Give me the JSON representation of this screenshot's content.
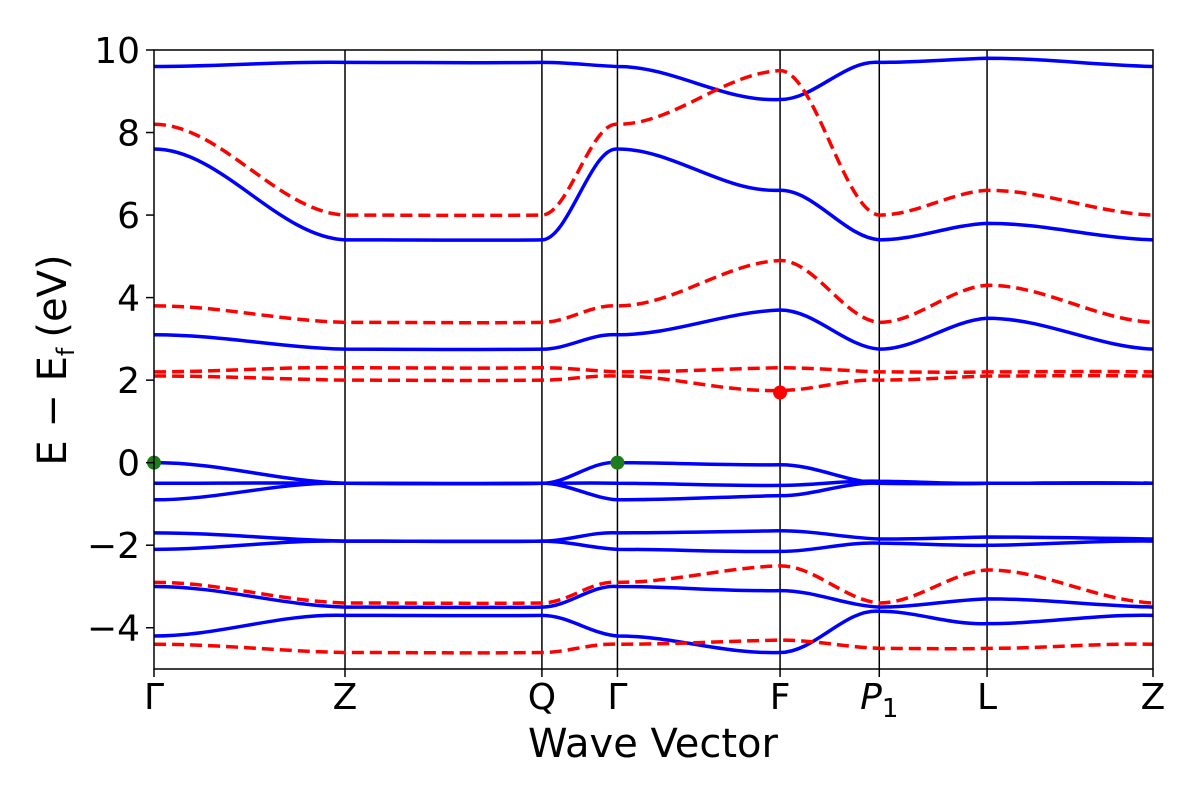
{
  "chart_data": {
    "type": "line",
    "title": "",
    "xlabel": "Wave Vector",
    "ylabel": "E − E",
    "ylabel_subscript": "f",
    "ylabel_unit": "(eV)",
    "ylim": [
      -5,
      10
    ],
    "yticks": [
      -4,
      -2,
      0,
      2,
      4,
      6,
      8,
      10
    ],
    "ytick_labels": [
      "−4",
      "−2",
      "0",
      "2",
      "4",
      "6",
      "8",
      "10"
    ],
    "kpath_positions": [
      0,
      1.912,
      3.883,
      4.639,
      6.267,
      7.26,
      8.339,
      10
    ],
    "kpath_labels": [
      {
        "text": "Γ"
      },
      {
        "text": "Z"
      },
      {
        "text": "Q"
      },
      {
        "text": "Γ"
      },
      {
        "text": "F"
      },
      {
        "text": "P",
        "subscript": "1"
      },
      {
        "text": "L"
      },
      {
        "text": "Z"
      }
    ],
    "xlim": [
      0,
      10
    ],
    "colors": {
      "spin_up": "#0000ff",
      "spin_down": "#ff0000",
      "vbm": "#1e7b1e",
      "cbm": "#ff0000"
    },
    "series": [
      {
        "name": "spin-up-band",
        "style": "solid",
        "color": "#0000ff",
        "x": [
          0,
          1.912,
          3.883,
          4.639,
          6.267,
          7.26,
          8.339,
          10
        ],
        "y": [
          -0.9,
          -0.5,
          -0.5,
          -0.9,
          -0.8,
          -0.5,
          -0.5,
          -0.5
        ]
      },
      {
        "name": "spin-up-band",
        "style": "solid",
        "color": "#0000ff",
        "x": [
          0,
          1.912,
          3.883,
          4.639,
          6.267,
          7.26,
          8.339,
          10
        ],
        "y": [
          0,
          -0.5,
          -0.5,
          0,
          -0.05,
          -0.5,
          -0.5,
          -0.5
        ]
      },
      {
        "name": "spin-up-band",
        "style": "solid",
        "color": "#0000ff",
        "x": [
          0,
          1.912,
          3.883,
          4.639,
          6.267,
          7.26,
          8.339,
          10
        ],
        "y": [
          -0.5,
          -0.5,
          -0.5,
          -0.5,
          -0.55,
          -0.45,
          -0.5,
          -0.5
        ]
      },
      {
        "name": "spin-up-band",
        "style": "solid",
        "color": "#0000ff",
        "x": [
          0,
          1.912,
          3.883,
          4.639,
          6.267,
          7.26,
          8.339,
          10
        ],
        "y": [
          -1.7,
          -1.9,
          -1.9,
          -1.7,
          -1.65,
          -1.85,
          -1.8,
          -1.85
        ]
      },
      {
        "name": "spin-up-band",
        "style": "solid",
        "color": "#0000ff",
        "x": [
          0,
          1.912,
          3.883,
          4.639,
          6.267,
          7.26,
          8.339,
          10
        ],
        "y": [
          -2.1,
          -1.9,
          -1.9,
          -2.1,
          -2.15,
          -1.95,
          -2.0,
          -1.9
        ]
      },
      {
        "name": "spin-up-band",
        "style": "solid",
        "color": "#0000ff",
        "x": [
          0,
          1.912,
          3.883,
          4.639,
          6.267,
          7.26,
          8.339,
          10
        ],
        "y": [
          3.1,
          2.75,
          2.75,
          3.1,
          3.7,
          2.75,
          3.5,
          2.75
        ]
      },
      {
        "name": "spin-up-band",
        "style": "solid",
        "color": "#0000ff",
        "x": [
          0,
          1.912,
          3.883,
          4.639,
          6.267,
          7.26,
          8.339,
          10
        ],
        "y": [
          7.6,
          5.4,
          5.4,
          7.6,
          6.6,
          5.4,
          5.8,
          5.4
        ]
      },
      {
        "name": "spin-up-band",
        "style": "solid",
        "color": "#0000ff",
        "x": [
          0,
          1.912,
          3.883,
          4.639,
          6.267,
          7.26,
          8.339,
          10
        ],
        "y": [
          9.6,
          9.7,
          9.7,
          9.6,
          8.8,
          9.7,
          9.8,
          9.6
        ]
      },
      {
        "name": "spin-up-band",
        "style": "solid",
        "color": "#0000ff",
        "x": [
          0,
          1.912,
          3.883,
          4.639,
          6.267,
          7.26,
          8.339,
          10
        ],
        "y": [
          -3.0,
          -3.5,
          -3.5,
          -3.0,
          -3.1,
          -3.5,
          -3.3,
          -3.5
        ]
      },
      {
        "name": "spin-up-band",
        "style": "solid",
        "color": "#0000ff",
        "x": [
          0,
          1.912,
          3.883,
          4.639,
          6.267,
          7.26,
          8.339,
          10
        ],
        "y": [
          -4.2,
          -3.7,
          -3.7,
          -4.2,
          -4.6,
          -3.6,
          -3.9,
          -3.7
        ]
      },
      {
        "name": "spin-down-band",
        "style": "dashed",
        "color": "#ff0000",
        "x": [
          0,
          1.912,
          3.883,
          4.639,
          6.267,
          7.26,
          8.339,
          10
        ],
        "y": [
          2.1,
          2.0,
          2.0,
          2.1,
          1.75,
          2.0,
          2.1,
          2.1
        ]
      },
      {
        "name": "spin-down-band",
        "style": "dashed",
        "color": "#ff0000",
        "x": [
          0,
          1.912,
          3.883,
          4.639,
          6.267,
          7.26,
          8.339,
          10
        ],
        "y": [
          2.2,
          2.3,
          2.3,
          2.2,
          2.3,
          2.2,
          2.2,
          2.2
        ]
      },
      {
        "name": "spin-down-band",
        "style": "dashed",
        "color": "#ff0000",
        "x": [
          0,
          1.912,
          3.883,
          4.639,
          6.267,
          7.26,
          8.339,
          10
        ],
        "y": [
          3.8,
          3.4,
          3.4,
          3.8,
          4.9,
          3.4,
          4.3,
          3.4
        ]
      },
      {
        "name": "spin-down-band",
        "style": "dashed",
        "color": "#ff0000",
        "x": [
          0,
          1.912,
          3.883,
          4.639,
          6.267,
          7.26,
          8.339,
          10
        ],
        "y": [
          8.2,
          6.0,
          6.0,
          8.2,
          9.5,
          6.0,
          6.6,
          6.0
        ]
      },
      {
        "name": "spin-down-band",
        "style": "dashed",
        "color": "#ff0000",
        "x": [
          0,
          1.912,
          3.883,
          4.639,
          6.267,
          7.26,
          8.339,
          10
        ],
        "y": [
          -2.9,
          -3.4,
          -3.4,
          -2.9,
          -2.5,
          -3.4,
          -2.6,
          -3.4
        ]
      },
      {
        "name": "spin-down-band",
        "style": "dashed",
        "color": "#ff0000",
        "x": [
          0,
          1.912,
          3.883,
          4.639,
          6.267,
          7.26,
          8.339,
          10
        ],
        "y": [
          -4.4,
          -4.6,
          -4.6,
          -4.4,
          -4.3,
          -4.5,
          -4.5,
          -4.4
        ]
      }
    ],
    "markers": [
      {
        "name": "vbm-marker",
        "x": 0,
        "y": 0,
        "color": "#1e7b1e"
      },
      {
        "name": "vbm-marker",
        "x": 4.639,
        "y": 0,
        "color": "#1e7b1e"
      },
      {
        "name": "cbm-marker",
        "x": 6.267,
        "y": 1.7,
        "color": "#ff0000"
      }
    ]
  }
}
